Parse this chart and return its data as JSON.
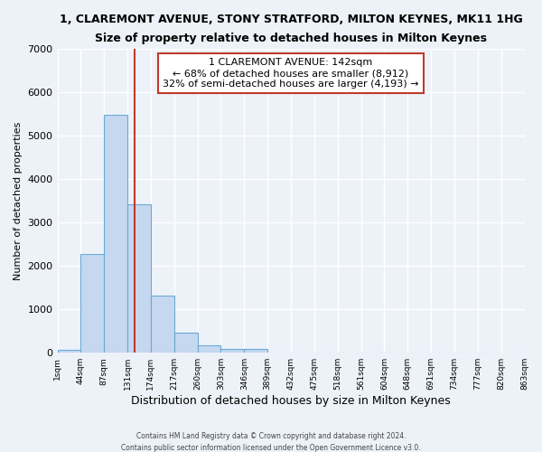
{
  "title": "1, CLAREMONT AVENUE, STONY STRATFORD, MILTON KEYNES, MK11 1HG",
  "subtitle": "Size of property relative to detached houses in Milton Keynes",
  "xlabel": "Distribution of detached houses by size in Milton Keynes",
  "ylabel": "Number of detached properties",
  "bar_values": [
    75,
    2280,
    5480,
    3430,
    1320,
    460,
    165,
    80,
    80,
    0,
    0,
    0,
    0,
    0,
    0,
    0,
    0,
    0,
    0,
    0
  ],
  "x_labels": [
    "1sqm",
    "44sqm",
    "87sqm",
    "131sqm",
    "174sqm",
    "217sqm",
    "260sqm",
    "303sqm",
    "346sqm",
    "389sqm",
    "432sqm",
    "475sqm",
    "518sqm",
    "561sqm",
    "604sqm",
    "648sqm",
    "691sqm",
    "734sqm",
    "777sqm",
    "820sqm",
    "863sqm"
  ],
  "bar_color": "#c5d8f0",
  "bar_edge_color": "#6aaad4",
  "vline_x": 3.3,
  "vline_color": "#c0392b",
  "annotation_title": "1 CLAREMONT AVENUE: 142sqm",
  "annotation_line1": "← 68% of detached houses are smaller (8,912)",
  "annotation_line2": "32% of semi-detached houses are larger (4,193) →",
  "annotation_box_color": "#ffffff",
  "annotation_box_edge": "#c0392b",
  "ylim": [
    0,
    7000
  ],
  "yticks": [
    0,
    1000,
    2000,
    3000,
    4000,
    5000,
    6000,
    7000
  ],
  "footer": "Contains HM Land Registry data © Crown copyright and database right 2024.\nContains public sector information licensed under the Open Government Licence v3.0.",
  "background_color": "#edf2f9",
  "grid_color": "#ffffff"
}
